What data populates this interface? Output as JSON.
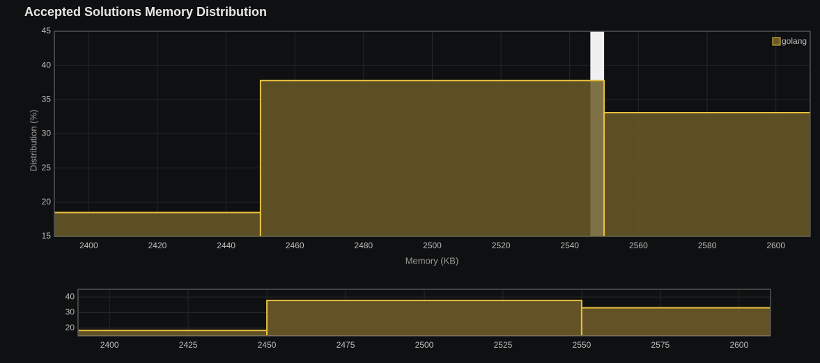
{
  "chart_data": {
    "type": "histogram",
    "title": "Accepted Solutions Memory Distribution",
    "xlabel": "Memory (KB)",
    "ylabel": "Distribution (%)",
    "bins": [
      2350,
      2450,
      2550,
      2650
    ],
    "series": [
      {
        "name": "golang",
        "color": "#6b5a28",
        "edge_color": "#e8c040",
        "values": [
          18.5,
          37.8,
          33.1
        ]
      }
    ],
    "highlight_range": [
      2546,
      2550
    ],
    "xlim": [
      2390,
      2610
    ],
    "ylim": [
      15,
      45
    ],
    "xticks": [
      2400,
      2420,
      2440,
      2460,
      2480,
      2500,
      2520,
      2540,
      2560,
      2580,
      2600
    ],
    "yticks": [
      15,
      20,
      25,
      30,
      35,
      40,
      45
    ],
    "grid": true,
    "legend": "top-right",
    "navigator": {
      "xlim": [
        2390,
        2610
      ],
      "ylim": [
        15,
        45
      ],
      "xticks": [
        2400,
        2425,
        2450,
        2475,
        2500,
        2525,
        2550,
        2575,
        2600
      ],
      "yticks": [
        20,
        30,
        40
      ]
    }
  }
}
